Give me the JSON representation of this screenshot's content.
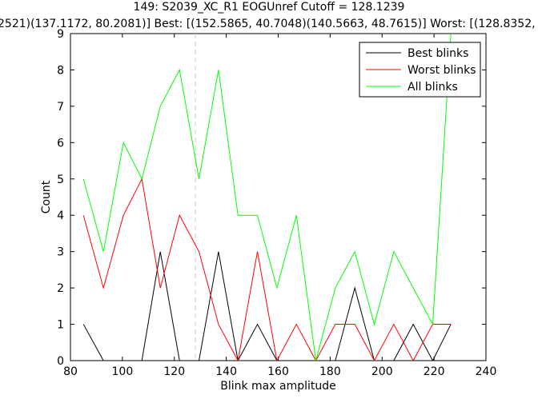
{
  "chart_data": {
    "type": "line",
    "title_line1": "149: S2039_XC_R1 EOGUnref Cutoff = 128.1239",
    "title_line2": "2521)(137.1172, 80.2081)] Best: [(152.5865, 40.7048)(140.5663, 48.7615)] Worst: [(128.8352, 39",
    "xlabel": "Blink max amplitude",
    "ylabel": "Count",
    "xlim": [
      80,
      240
    ],
    "ylim": [
      0,
      9
    ],
    "xticks": [
      80,
      100,
      120,
      140,
      160,
      180,
      200,
      220,
      240
    ],
    "yticks": [
      0,
      1,
      2,
      3,
      4,
      5,
      6,
      7,
      8,
      9
    ],
    "cutoff": 128.1239,
    "grid": false,
    "legend_position": "top-right",
    "x": [
      85,
      92.7,
      100.4,
      107.5,
      114.6,
      122,
      129.5,
      137,
      144.5,
      152,
      159.5,
      167,
      174.5,
      182,
      189.5,
      197,
      204.5,
      212,
      219.5,
      226.5
    ],
    "series": [
      {
        "name": "Best blinks",
        "color": "#000000",
        "values": [
          1,
          0,
          0,
          0,
          3,
          0,
          0,
          3,
          0,
          1,
          0,
          0,
          0,
          0,
          2,
          0,
          0,
          1,
          0,
          1
        ]
      },
      {
        "name": "Worst blinks",
        "color": "#ff0000",
        "values": [
          4,
          2,
          4,
          5,
          2,
          4,
          3,
          1,
          0,
          3,
          0,
          1,
          0,
          1,
          1,
          0,
          1,
          0,
          1,
          1
        ]
      },
      {
        "name": "All blinks",
        "color": "#00ff00",
        "values": [
          5,
          3,
          6,
          5,
          7,
          8,
          5,
          8,
          4,
          4,
          2,
          4,
          0,
          2,
          3,
          1,
          3,
          2,
          1,
          9
        ]
      }
    ]
  }
}
